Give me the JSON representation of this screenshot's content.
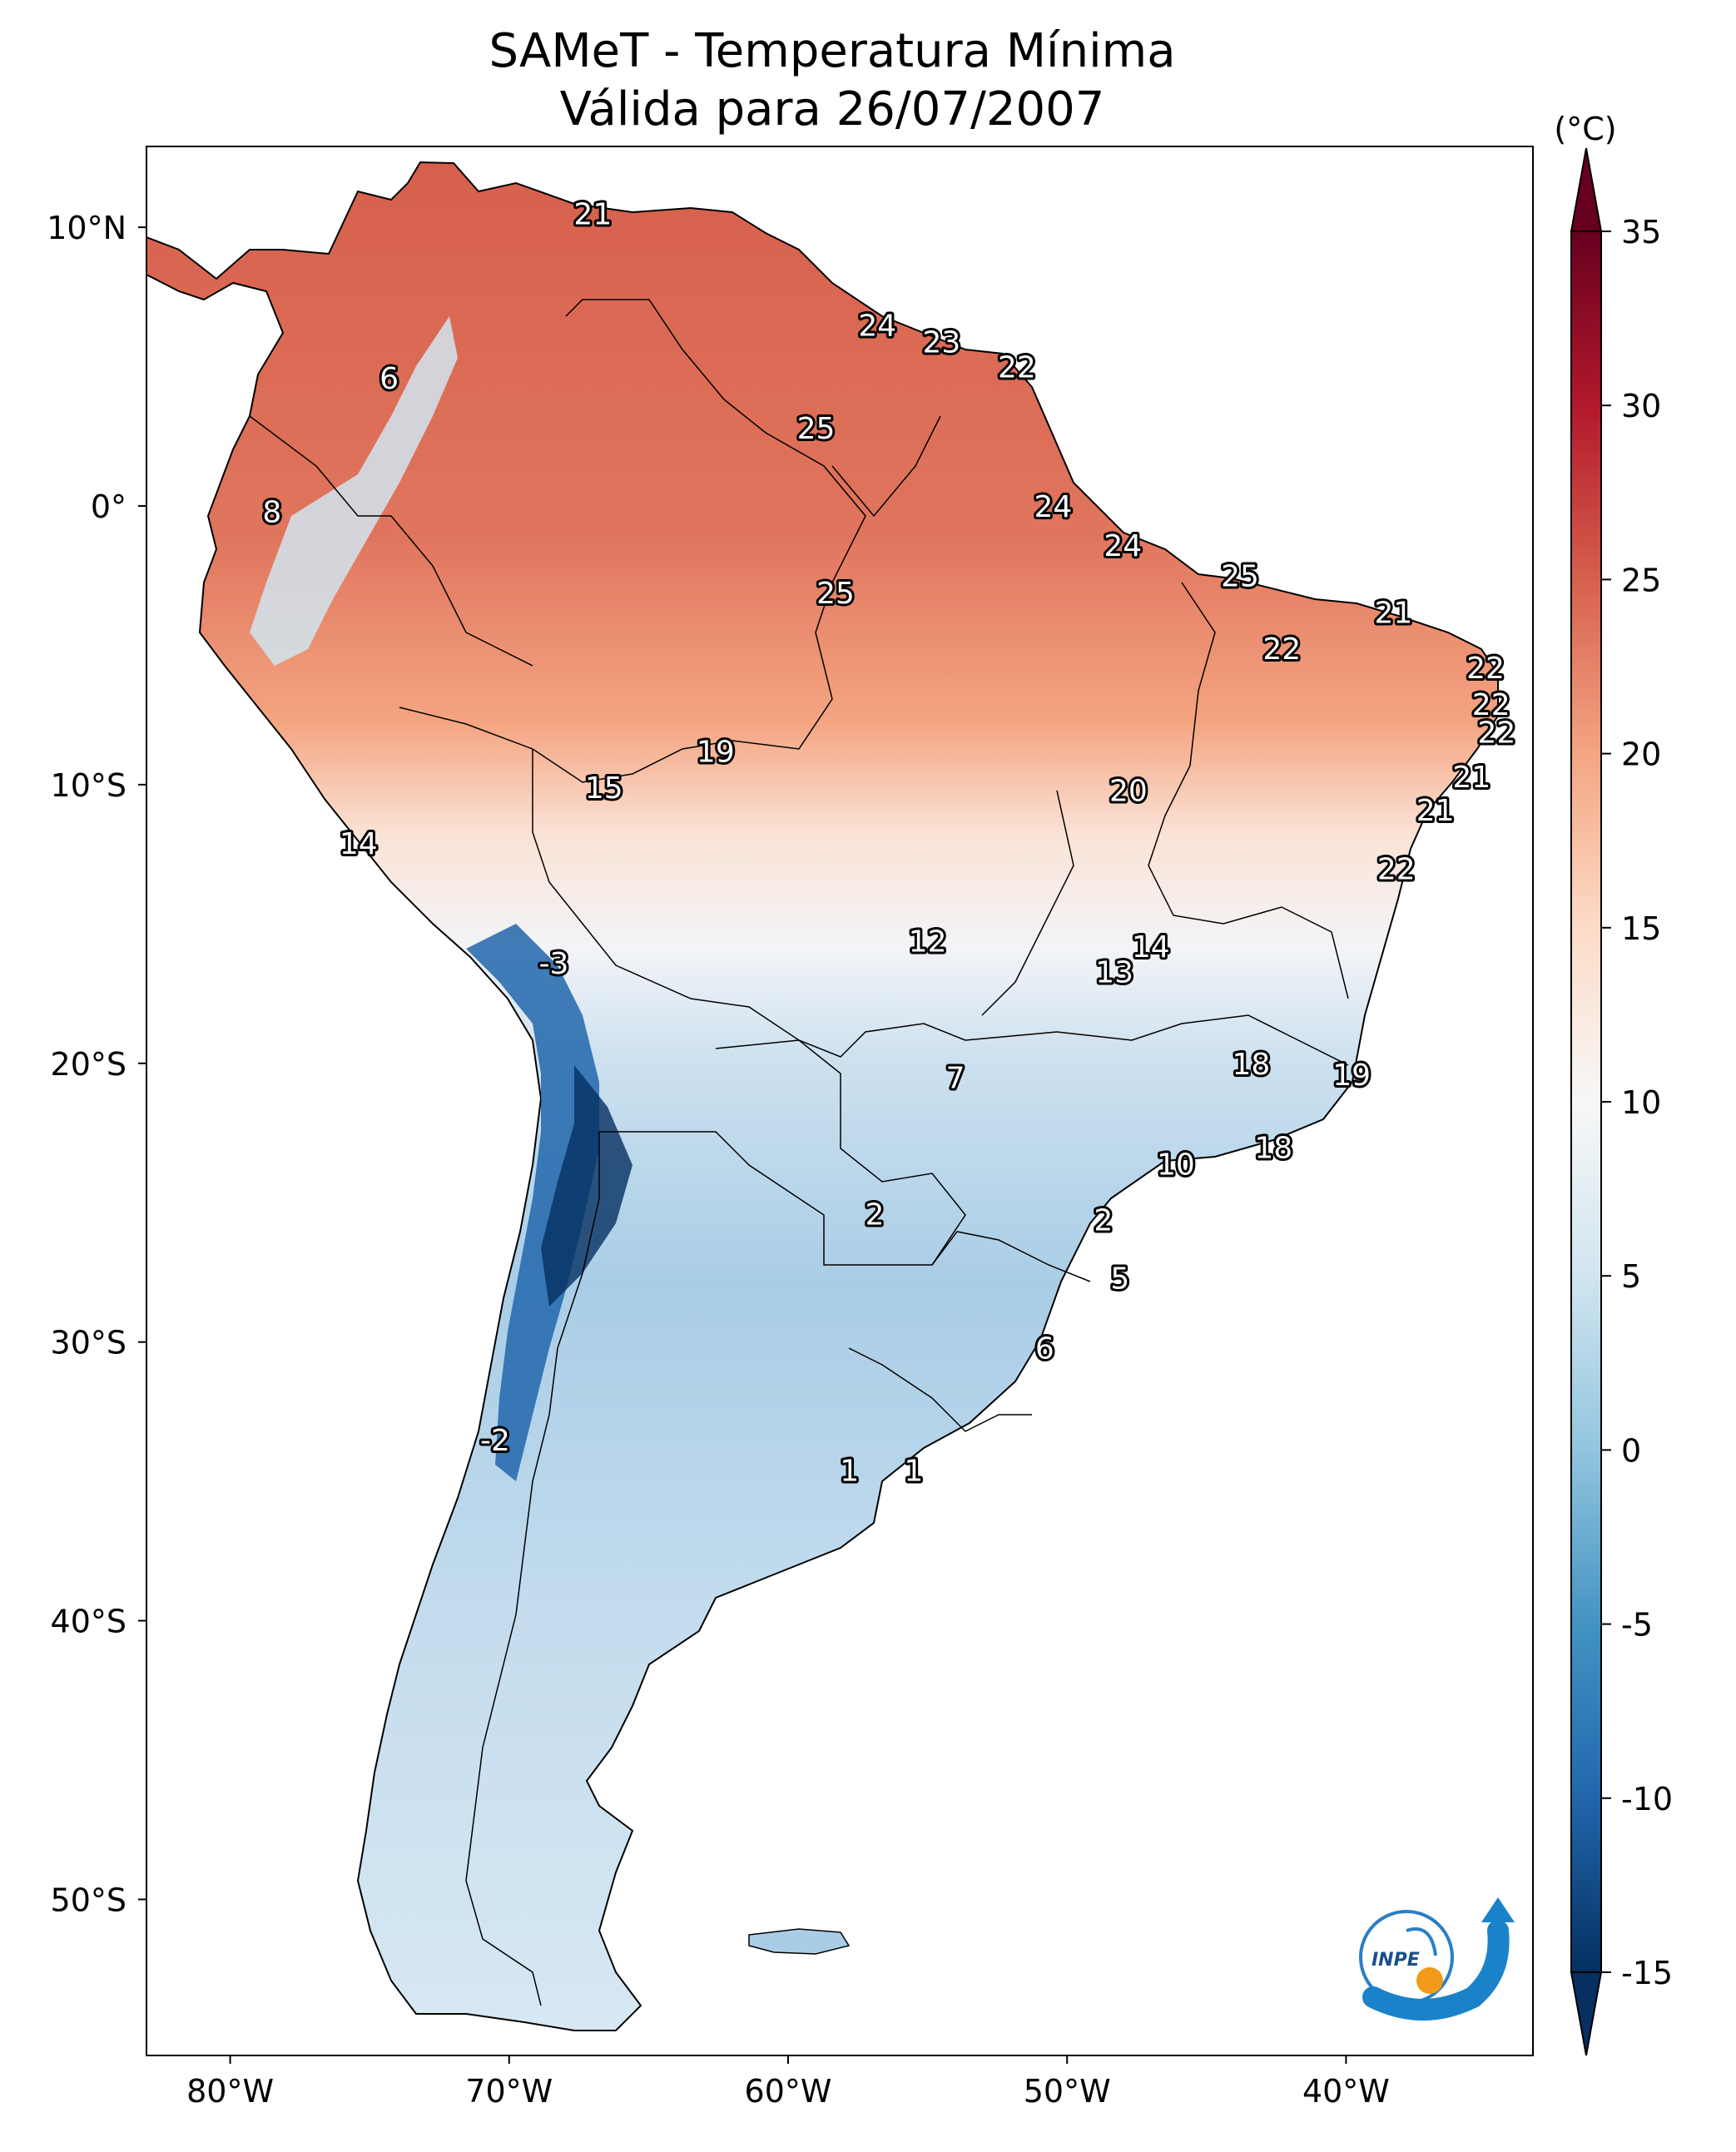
{
  "title_line1": "SAMeT - Temperatura Mínima",
  "title_line2": "Válida para 26/07/2007",
  "colorbar": {
    "unit": "(°C)",
    "ticks": [
      "35",
      "30",
      "25",
      "20",
      "15",
      "10",
      "5",
      "0",
      "-5",
      "-10",
      "-15"
    ],
    "min": -15,
    "max": 35,
    "colors": [
      "#053061",
      "#2166ac",
      "#4393c3",
      "#92c5de",
      "#d1e5f0",
      "#f7f7f7",
      "#fddbc7",
      "#f4a582",
      "#d6604d",
      "#b2182b",
      "#67001f"
    ]
  },
  "lat_labels": [
    "10°N",
    "0°",
    "10°S",
    "20°S",
    "30°S",
    "40°S",
    "50°S"
  ],
  "lon_labels": [
    "80°W",
    "70°W",
    "60°W",
    "50°W",
    "40°W"
  ],
  "values": [
    {
      "text": "21",
      "lon": -67.0,
      "lat": 10.5
    },
    {
      "text": "24",
      "lon": -56.8,
      "lat": 6.5
    },
    {
      "text": "23",
      "lon": -54.5,
      "lat": 5.9
    },
    {
      "text": "22",
      "lon": -51.8,
      "lat": 5.0
    },
    {
      "text": "6",
      "lon": -74.3,
      "lat": 4.6
    },
    {
      "text": "25",
      "lon": -59.0,
      "lat": 2.8
    },
    {
      "text": "8",
      "lon": -78.5,
      "lat": -0.2
    },
    {
      "text": "24",
      "lon": -50.5,
      "lat": 0.0
    },
    {
      "text": "24",
      "lon": -48.0,
      "lat": -1.4
    },
    {
      "text": "25",
      "lon": -58.3,
      "lat": -3.1
    },
    {
      "text": "25",
      "lon": -43.8,
      "lat": -2.5
    },
    {
      "text": "21",
      "lon": -38.3,
      "lat": -3.8
    },
    {
      "text": "22",
      "lon": -42.3,
      "lat": -5.1
    },
    {
      "text": "22",
      "lon": -35.0,
      "lat": -5.8
    },
    {
      "text": "22",
      "lon": -34.8,
      "lat": -7.1
    },
    {
      "text": "22",
      "lon": -34.6,
      "lat": -8.1
    },
    {
      "text": "19",
      "lon": -62.6,
      "lat": -8.8
    },
    {
      "text": "21",
      "lon": -35.5,
      "lat": -9.7
    },
    {
      "text": "15",
      "lon": -66.6,
      "lat": -10.1
    },
    {
      "text": "20",
      "lon": -47.8,
      "lat": -10.2
    },
    {
      "text": "21",
      "lon": -36.8,
      "lat": -10.9
    },
    {
      "text": "14",
      "lon": -75.4,
      "lat": -12.1
    },
    {
      "text": "22",
      "lon": -38.2,
      "lat": -13.0
    },
    {
      "text": "12",
      "lon": -55.0,
      "lat": -15.6
    },
    {
      "text": "14",
      "lon": -47.0,
      "lat": -15.8
    },
    {
      "text": "13",
      "lon": -48.3,
      "lat": -16.7
    },
    {
      "text": "-3",
      "lon": -68.4,
      "lat": -16.4
    },
    {
      "text": "18",
      "lon": -43.4,
      "lat": -20.0
    },
    {
      "text": "19",
      "lon": -39.8,
      "lat": -20.4
    },
    {
      "text": "7",
      "lon": -54.0,
      "lat": -20.5
    },
    {
      "text": "18",
      "lon": -42.6,
      "lat": -23.0
    },
    {
      "text": "10",
      "lon": -46.1,
      "lat": -23.6
    },
    {
      "text": "2",
      "lon": -56.9,
      "lat": -25.4
    },
    {
      "text": "2",
      "lon": -48.7,
      "lat": -25.6
    },
    {
      "text": "5",
      "lon": -48.1,
      "lat": -27.7
    },
    {
      "text": "6",
      "lon": -50.8,
      "lat": -30.2
    },
    {
      "text": "-2",
      "lon": -70.5,
      "lat": -33.5
    },
    {
      "text": "1",
      "lon": -57.8,
      "lat": -34.6
    },
    {
      "text": "1",
      "lon": -55.5,
      "lat": -34.6
    }
  ]
}
